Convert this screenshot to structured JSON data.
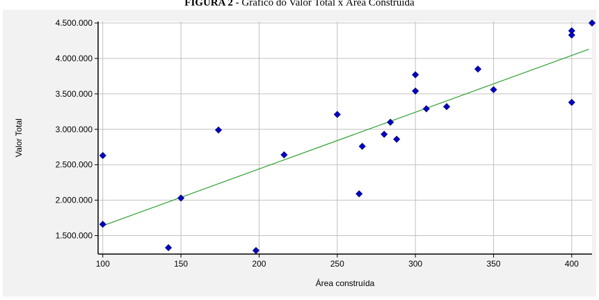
{
  "figure_caption": {
    "label": "FIGURA 2",
    "separator": " - ",
    "text": "Gráfico do Valor Total x Área Construída"
  },
  "chart_data": {
    "type": "scatter",
    "title": "",
    "xlabel": "Área construída",
    "ylabel": "Valor Total",
    "xlim": [
      97,
      413
    ],
    "ylim": [
      1240000,
      4520000
    ],
    "xticks": [
      100,
      150,
      200,
      250,
      300,
      350,
      400
    ],
    "xtick_labels": [
      "100",
      "150",
      "200",
      "250",
      "300",
      "350",
      "400"
    ],
    "yticks": [
      1500000,
      2000000,
      2500000,
      3000000,
      3500000,
      4000000,
      4500000
    ],
    "ytick_labels": [
      "1.500.000",
      "2.000.000",
      "2.500.000",
      "3.000.000",
      "3.500.000",
      "4.000.000",
      "4.500.000"
    ],
    "grid": true,
    "point_color": "#0000cc",
    "point_stroke": "#000066",
    "line_color": "#2e9e2e",
    "background_color": "#f2f2f2",
    "plot_background_color": "#ffffff",
    "series": [
      {
        "type": "scatter",
        "points": [
          {
            "x": 100,
            "y": 2630000
          },
          {
            "x": 100,
            "y": 1660000
          },
          {
            "x": 142,
            "y": 1330000
          },
          {
            "x": 150,
            "y": 2030000
          },
          {
            "x": 174,
            "y": 2990000
          },
          {
            "x": 198,
            "y": 1290000
          },
          {
            "x": 216,
            "y": 2640000
          },
          {
            "x": 250,
            "y": 3210000
          },
          {
            "x": 264,
            "y": 2090000
          },
          {
            "x": 266,
            "y": 2760000
          },
          {
            "x": 280,
            "y": 2930000
          },
          {
            "x": 284,
            "y": 3100000
          },
          {
            "x": 288,
            "y": 2860000
          },
          {
            "x": 300,
            "y": 3770000
          },
          {
            "x": 300,
            "y": 3540000
          },
          {
            "x": 307,
            "y": 3290000
          },
          {
            "x": 320,
            "y": 3320000
          },
          {
            "x": 340,
            "y": 3850000
          },
          {
            "x": 350,
            "y": 3560000
          },
          {
            "x": 400,
            "y": 4390000
          },
          {
            "x": 400,
            "y": 4330000
          },
          {
            "x": 400,
            "y": 3380000
          },
          {
            "x": 413,
            "y": 4500000
          }
        ]
      },
      {
        "type": "line",
        "points": [
          {
            "x": 100,
            "y": 1640000
          },
          {
            "x": 411,
            "y": 4130000
          }
        ]
      }
    ]
  }
}
